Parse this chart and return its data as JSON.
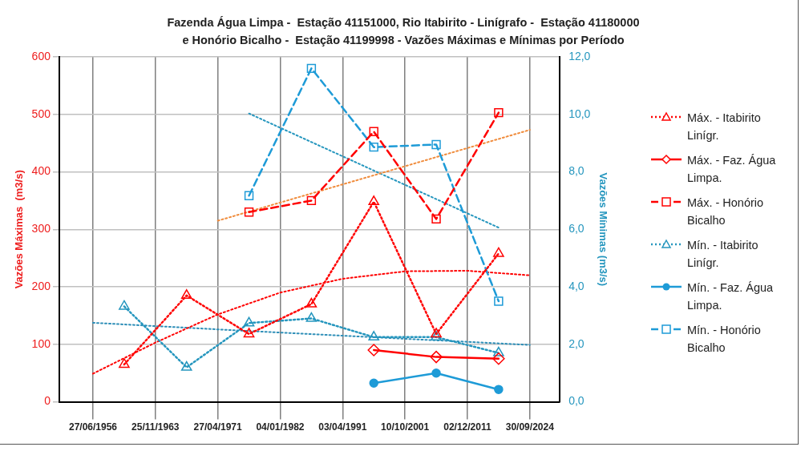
{
  "chart_data": {
    "type": "line",
    "title": "Fazenda Água Limpa -  Estação 41151000, Rio Itabirito - Linígrafo -  Estação 41180000 e Honório Bicalho -  Estação 41199998 - Vazões Máximas e Mínimas por Período",
    "ylabel": "Vazões Máximas  (m3/s)",
    "y2label": "Vazões Mínimas (m3/s)",
    "categories": [
      "27/06/1956",
      null,
      "25/11/1963",
      null,
      "27/04/1971",
      null,
      "04/01/1982",
      null,
      "03/04/1991",
      null,
      "10/10/2001",
      null,
      "02/12/2011",
      null,
      "30/09/2024"
    ],
    "ylim": [
      0,
      600
    ],
    "yticks": [
      0,
      100,
      200,
      300,
      400,
      500,
      600
    ],
    "y2lim": [
      0,
      12
    ],
    "y2ticks": [
      {
        "value": 0,
        "label": "0,0"
      },
      {
        "value": 2,
        "label": "2,0"
      },
      {
        "value": 4,
        "label": "4,0"
      },
      {
        "value": 6,
        "label": "6,0"
      },
      {
        "value": 8,
        "label": "8,0"
      },
      {
        "value": 10,
        "label": "10,0"
      },
      {
        "value": 12,
        "label": "12,0"
      }
    ],
    "grid": true,
    "legend": "right",
    "series": [
      {
        "name": "Máx. - Itabirito Linígr.",
        "color": "#ff0000",
        "values": [
          null,
          65,
          null,
          185,
          null,
          118,
          null,
          170,
          null,
          348,
          null,
          118,
          null,
          258,
          null
        ],
        "marker": "triangle",
        "line_style": "dotted"
      },
      {
        "name": "Máx. - Faz. Água Limpa.",
        "color": "#ff0000",
        "values": [
          null,
          null,
          null,
          null,
          null,
          null,
          null,
          null,
          null,
          90,
          null,
          78,
          null,
          75,
          null
        ],
        "marker": "diamond",
        "line_style": "solid"
      },
      {
        "name": "Máx. - Honório Bicalho",
        "color": "#ff0000",
        "values": [
          null,
          null,
          null,
          null,
          null,
          330,
          null,
          350,
          null,
          470,
          null,
          318,
          null,
          503,
          null
        ],
        "marker": "square",
        "line_style": "dashed"
      },
      {
        "name": "Mín. - Itabirito Linígr.",
        "color": "#2596be",
        "values": [
          null,
          3.32,
          null,
          1.2,
          null,
          2.74,
          null,
          2.9,
          null,
          2.25,
          null,
          2.25,
          null,
          1.7,
          null
        ],
        "marker": "triangle",
        "line_style": "dotted",
        "axis": "y2"
      },
      {
        "name": "Mín. -  Faz. Água Limpa.",
        "color": "#1e9bd7",
        "values": [
          null,
          null,
          null,
          null,
          null,
          null,
          null,
          null,
          null,
          0.65,
          null,
          1.0,
          null,
          0.43,
          null
        ],
        "marker": "circle",
        "line_style": "solid",
        "axis": "y2"
      },
      {
        "name": "Mín. - Honório Bicalho",
        "color": "#1e9bd7",
        "values": [
          null,
          null,
          null,
          null,
          null,
          7.17,
          null,
          11.6,
          null,
          8.86,
          null,
          8.95,
          null,
          3.5,
          null
        ],
        "marker": "square",
        "line_style": "dashed",
        "axis": "y2"
      },
      {
        "type": "line",
        "color": "#f08c3c",
        "values": [
          null,
          null,
          null,
          null,
          315,
          null,
          null,
          null,
          null,
          null,
          null,
          null,
          null,
          null,
          473
        ],
        "marker": "none",
        "line_style": "dotted"
      },
      {
        "type": "line",
        "color": "#ff0000",
        "values": [
          49,
          null,
          103,
          null,
          152,
          null,
          190,
          null,
          214,
          null,
          227,
          null,
          228,
          null,
          220
        ],
        "marker": "none",
        "line_style": "dotted"
      },
      {
        "type": "line",
        "color": "#2f8fb8",
        "values": [
          2.75,
          null,
          null,
          null,
          2.52,
          null,
          null,
          null,
          2.3,
          null,
          null,
          null,
          null,
          null,
          1.98
        ],
        "marker": "none",
        "line_style": "dotted",
        "axis": "y2"
      },
      {
        "type": "line",
        "color": "#2596be",
        "values": [
          null,
          null,
          null,
          null,
          null,
          10.03,
          null,
          null,
          null,
          null,
          null,
          null,
          null,
          6.06,
          null
        ],
        "marker": "none",
        "line_style": "dotted",
        "axis": "y2"
      }
    ]
  }
}
